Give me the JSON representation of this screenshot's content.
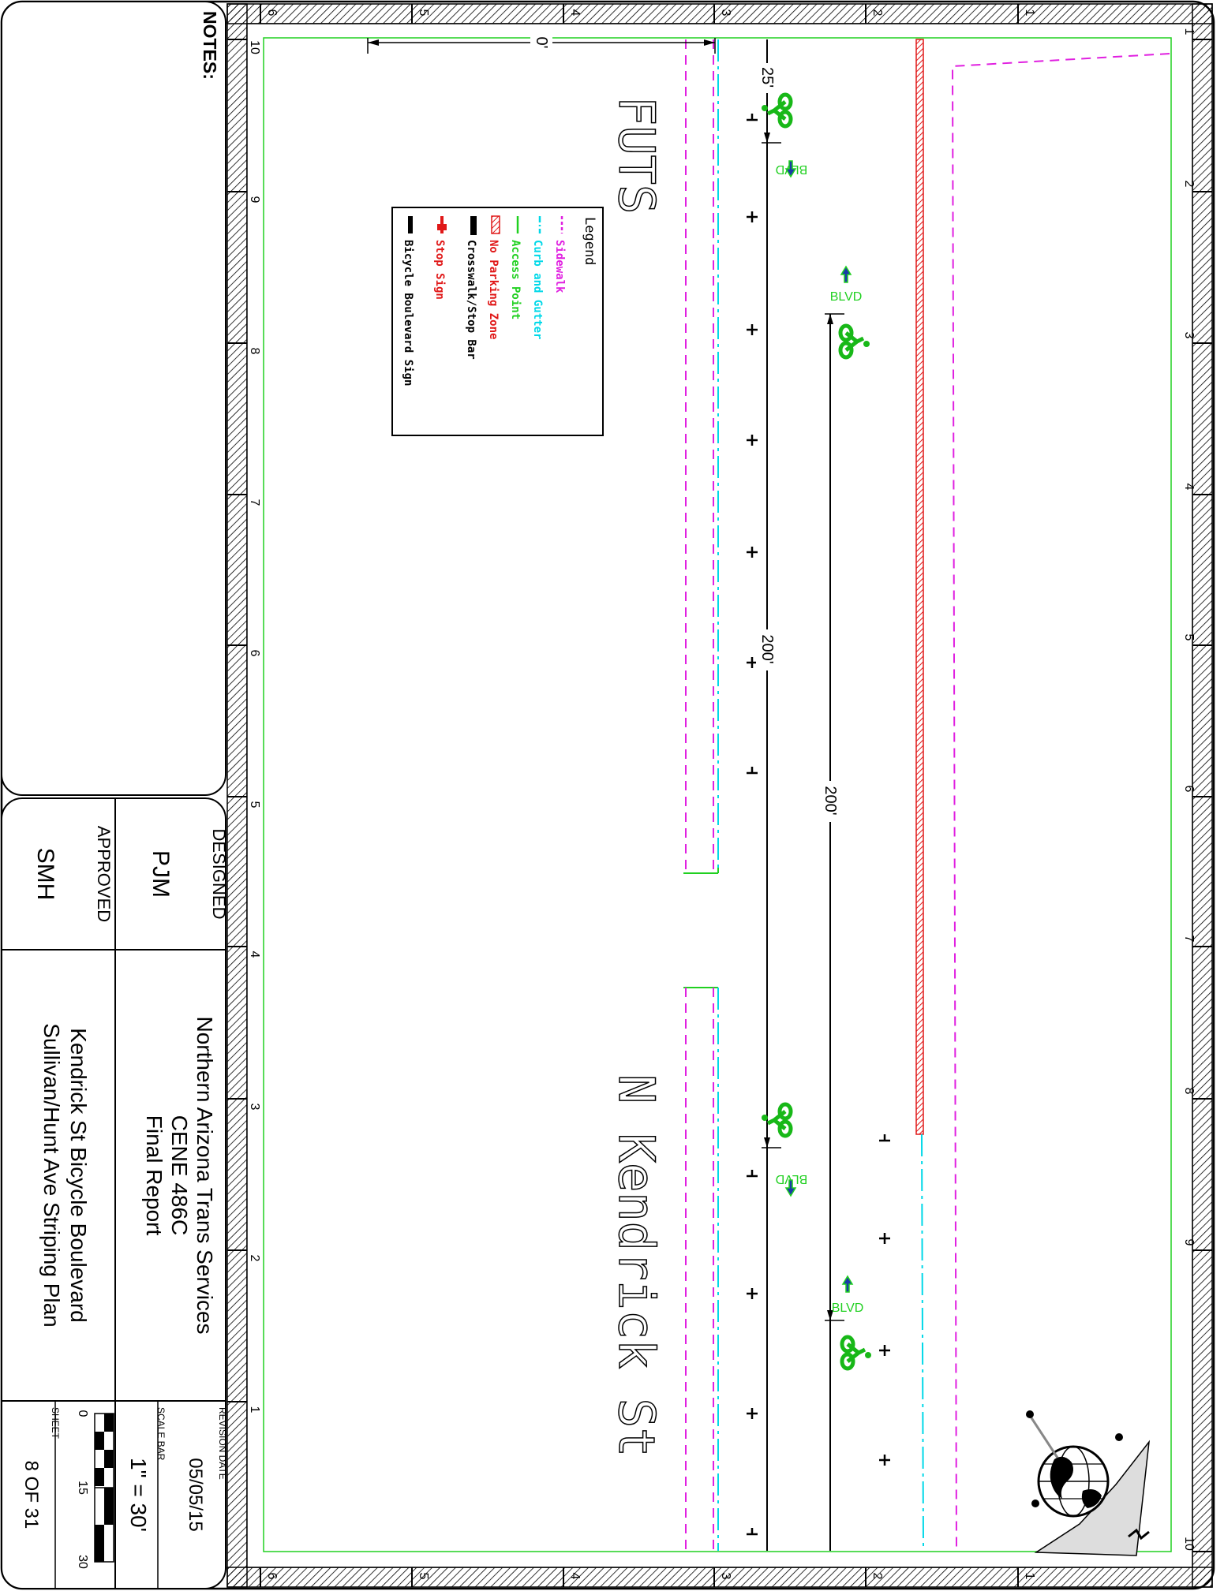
{
  "border_ticks": {
    "top": [
      "6",
      "5",
      "4",
      "3",
      "2",
      "1"
    ],
    "right": [
      "1",
      "2",
      "3",
      "4",
      "5",
      "6",
      "7",
      "8",
      "9",
      "10"
    ],
    "bottom": [
      "6",
      "5",
      "4",
      "3",
      "2",
      "1"
    ],
    "left": [
      "10",
      "9",
      "8",
      "7",
      "6",
      "5",
      "4",
      "3",
      "2",
      "1"
    ]
  },
  "plan": {
    "street_futs": "FUTS",
    "street_kendrick": "N Kendrick St",
    "dim_0": "0'",
    "dim_25": "25'",
    "dim_200_a": "200'",
    "dim_200_b": "200'",
    "blvd_labels": [
      "BLVD",
      "BLVD",
      "BLVD",
      "BLVD"
    ]
  },
  "legend": {
    "title": "Legend",
    "items": [
      {
        "label": "Sidewalk",
        "color": "#e020e0"
      },
      {
        "label": "Curb and Gutter",
        "color": "#00d8e8"
      },
      {
        "label": "Access Point",
        "color": "#20d020"
      },
      {
        "label": "No Parking Zone",
        "color": "#e01818"
      },
      {
        "label": "Crosswalk/Stop Bar",
        "color": "#000000"
      },
      {
        "label": "Stop Sign",
        "color": "#e01818"
      },
      {
        "label": "Bicycle Boulevard Sign",
        "color": "#000000"
      }
    ]
  },
  "title_block": {
    "notes_label": "NOTES:",
    "designed_label": "DESIGNED",
    "designed_value": "PJM",
    "approved_label": "APPROVED",
    "approved_value": "SMH",
    "org_line1": "Northern Arizona Trans Services",
    "org_line2": "CENE 486C",
    "org_line3": "Final Report",
    "project_line1": "Kendrick St Bicycle Boulevard",
    "project_line2": "Sullivan/Hunt Ave Striping Plan",
    "revision_label": "REVISION DATE",
    "revision_value": "05/05/15",
    "scale_label": "SCALE BAR",
    "scale_value": "1\" = 30'",
    "scale_ticks": [
      "0",
      "15",
      "30"
    ],
    "sheet_label": "SHEET",
    "sheet_value": "8 OF 31"
  },
  "colors": {
    "sidewalk": "#e020e0",
    "curb": "#00d8e8",
    "access": "#20d020",
    "no_parking": "#e01818",
    "bike_symbol": "#18b818",
    "arrow": "#1a3aa8"
  }
}
